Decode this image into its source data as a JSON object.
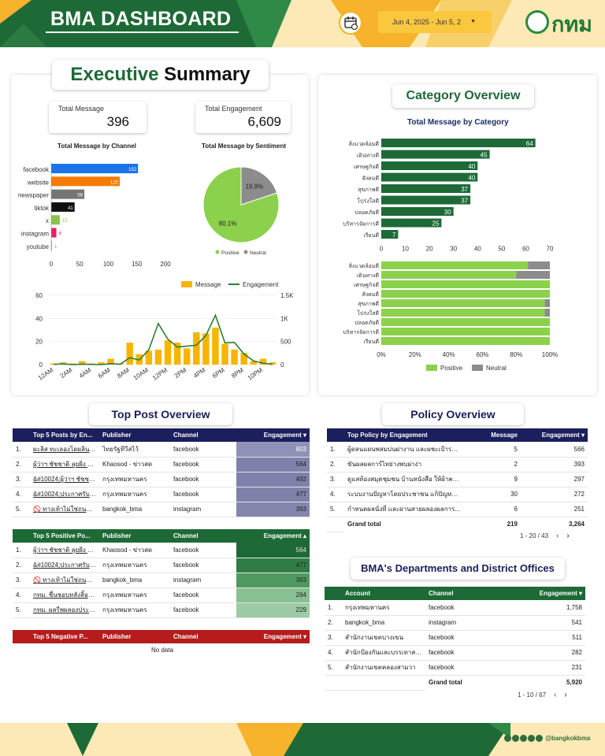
{
  "header": {
    "title": "BMA DASHBOARD",
    "date_range": "Jun 4, 2025 - Jun 5, 2",
    "logo_text": "กทม"
  },
  "colors": {
    "dark_green": "#1e6a37",
    "accent_green": "#7ec850",
    "yellow": "#f9c83f",
    "navy": "#1b1f5c",
    "red": "#b71c1c"
  },
  "exec": {
    "title_a": "Executive",
    "title_b": "Summary",
    "kpi1_label": "Total Message",
    "kpi1_value": "396",
    "kpi2_label": "Total Engagement",
    "kpi2_value": "6,609",
    "channel_title": "Total Message by Channel",
    "sentiment_title": "Total Message by Sentiment"
  },
  "category": {
    "title": "Category Overview",
    "chart_title": "Total Message by Category"
  },
  "chart_data": [
    {
      "type": "bar",
      "title": "Total Message by Channel",
      "categories": [
        "facebook",
        "website",
        "newspaper",
        "tiktok",
        "x",
        "instagram",
        "youtube"
      ],
      "values": [
        152,
        120,
        58,
        41,
        15,
        9,
        1
      ],
      "colors": [
        "#1a73e8",
        "#f57c00",
        "#757575",
        "#111111",
        "#8bc34a",
        "#e91e63",
        "#9e9e9e"
      ],
      "xlim": [
        0,
        200
      ],
      "xticks": [
        "0",
        "50",
        "100",
        "150",
        "200"
      ]
    },
    {
      "type": "pie",
      "title": "Total Message by Sentiment",
      "labels": [
        "Positive",
        "Neutral"
      ],
      "values": [
        80.1,
        19.9
      ],
      "label_text": [
        "80.1%",
        "19.9%"
      ],
      "colors": [
        "#8bd14b",
        "#8c8c8c"
      ]
    },
    {
      "type": "bar",
      "title": "Total Message by Category",
      "categories": [
        "สิ่งแวดล้อมดี",
        "เดินทางดี",
        "เศรษฐกิจดี",
        "สังคมดี",
        "สุขภาพดี",
        "โปร่งใสดี",
        "ปลอดภัยดี",
        "บริหารจัดการดี",
        "เรียนดี"
      ],
      "values": [
        64,
        45,
        40,
        40,
        37,
        37,
        30,
        25,
        7
      ],
      "xlim": [
        0,
        70
      ],
      "xticks": [
        "0",
        "10",
        "20",
        "30",
        "40",
        "50",
        "60",
        "70"
      ]
    },
    {
      "type": "bar",
      "title": "",
      "stacked": "100%",
      "categories": [
        "สิ่งแวดล้อมดี",
        "เดินทางดี",
        "เศรษฐกิจดี",
        "สังคมดี",
        "สุขภาพดี",
        "โปร่งใสดี",
        "ปลอดภัยดี",
        "บริหารจัดการดี",
        "เรียนดี"
      ],
      "series": [
        {
          "name": "Positive",
          "values": [
            87,
            80,
            100,
            100,
            97,
            97,
            100,
            100,
            100
          ]
        },
        {
          "name": "Neutral",
          "values": [
            13,
            20,
            0,
            0,
            3,
            3,
            0,
            0,
            0
          ]
        }
      ],
      "xticks": [
        "0%",
        "20%",
        "40%",
        "60%",
        "80%",
        "100%"
      ]
    },
    {
      "type": "bar",
      "title": "",
      "categories": [
        "12AM",
        "1AM",
        "2AM",
        "3AM",
        "4AM",
        "5AM",
        "6AM",
        "7AM",
        "8AM",
        "9AM",
        "10AM",
        "11AM",
        "12PM",
        "1PM",
        "2PM",
        "3PM",
        "4PM",
        "5PM",
        "6PM",
        "7PM",
        "8PM",
        "9PM",
        "10PM",
        "11PM"
      ],
      "xtick_labels": [
        "12AM",
        "2AM",
        "4AM",
        "6AM",
        "8AM",
        "10AM",
        "12PM",
        "2PM",
        "4PM",
        "6PM",
        "8PM",
        "10PM"
      ],
      "series": [
        {
          "name": "Message",
          "type": "bar",
          "axis": "left",
          "values": [
            1,
            2,
            1,
            3,
            1,
            2,
            5,
            1,
            19,
            9,
            12,
            13,
            21,
            19,
            14,
            28,
            27,
            32,
            18,
            13,
            10,
            3,
            5,
            2
          ]
        },
        {
          "name": "Engagement",
          "type": "line",
          "axis": "right",
          "values": [
            5,
            15,
            0,
            10,
            5,
            0,
            20,
            10,
            150,
            100,
            320,
            890,
            550,
            380,
            400,
            420,
            630,
            1070,
            470,
            480,
            230,
            80,
            30,
            5
          ]
        }
      ],
      "ylim_left": [
        0,
        60
      ],
      "ylim_right": [
        0,
        1500
      ],
      "yticks_left": [
        "0",
        "20",
        "40",
        "60"
      ],
      "yticks_right": [
        "0",
        "500",
        "1K",
        "1.5K"
      ]
    }
  ],
  "top_post": {
    "title": "Top Post Overview",
    "t1": {
      "headers": [
        "Top 5 Posts by En...",
        "Publisher",
        "Channel",
        "Engagement ▾"
      ],
      "rows": [
        {
          "n": "1.",
          "post": "ผะลิส ทะเลองโดผลินทะเลิก...",
          "pub": "ไทยรัฐทีวีสไว้",
          "ch": "facebook",
          "eng": "803"
        },
        {
          "n": "2.",
          "post": "ผู้ว่าฯ ชัชชาติ ลุยฝั่ง ผละ ผ...",
          "pub": "Khaosod - ข่าวสด",
          "ch": "facebook",
          "eng": "564"
        },
        {
          "n": "3.",
          "post": "&#10024;ผู้ว่าฯ ชัชชาติ...",
          "pub": "กรุงเทพมหานคร",
          "ch": "facebook",
          "eng": "492"
        },
        {
          "n": "4.",
          "post": "&#10024;ประกาศรับสมั...",
          "pub": "กรุงเทพมหานคร",
          "ch": "facebook",
          "eng": "477"
        },
        {
          "n": "5.",
          "post": "🚫 ทางเท้าไม่ใช่ถนนผลิต...",
          "pub": "bangkok_bma",
          "ch": "instagram",
          "eng": "393"
        }
      ]
    },
    "t2": {
      "headers": [
        "Top 5 Positive Po...",
        "Publisher",
        "Channel",
        "Engagement ▴"
      ],
      "rows": [
        {
          "n": "1.",
          "post": "ผู้ว่าฯ ชัชชาติ ลุยฝั่ง ผละ ผ...",
          "pub": "Khaosod - ข่าวสด",
          "ch": "facebook",
          "eng": "564"
        },
        {
          "n": "2.",
          "post": "&#10024;ประกาศรับสมั...",
          "pub": "กรุงเทพมหานคร",
          "ch": "facebook",
          "eng": "477"
        },
        {
          "n": "3.",
          "post": "🚫 ทางเท้าไม่ใช่ถนนผลิต...",
          "pub": "bangkok_bma",
          "ch": "instagram",
          "eng": "393"
        },
        {
          "n": "4.",
          "post": "กทม. ชื่นชอบหลังสิ้อยุคร...",
          "pub": "กรุงเทพมหานคร",
          "ch": "facebook",
          "eng": "264"
        },
        {
          "n": "5.",
          "post": "กทม. ผลรีพผลองประกาศ...",
          "pub": "กรุงเทพมหานคร",
          "ch": "facebook",
          "eng": "229"
        }
      ]
    },
    "t3": {
      "headers": [
        "Top 5 Negative P...",
        "Publisher",
        "Channel",
        "Engagement ▾"
      ],
      "no_data": "No data"
    }
  },
  "policy": {
    "title": "Policy Overview",
    "headers": [
      "Top Policy by Engagement",
      "Message",
      "Engagement ▾"
    ],
    "rows": [
      {
        "n": "1.",
        "name": "ผู้ดลนแผนพสมบ่นผ่างาน และผชะเป้ารากอดบ...",
        "msg": "5",
        "eng": "566"
      },
      {
        "n": "2.",
        "name": "ขันผลผลการ์ไทย่างพบผ่าง่า",
        "msg": "2",
        "eng": "393"
      },
      {
        "n": "3.",
        "name": "ดูแลท้องสมุดชุมชน บ้านหนังสือ ให้ผ้าคา...",
        "msg": "9",
        "eng": "297"
      },
      {
        "n": "4.",
        "name": "ระบบงานปัญหาโดยประชาชน แก้ปัญหาโค...",
        "msg": "30",
        "eng": "272"
      },
      {
        "n": "5.",
        "name": "กำหนดผลนั่งที่ และผ่านสายผลองผลการ...",
        "msg": "6",
        "eng": "251"
      }
    ],
    "grand_label": "Grand total",
    "grand_msg": "219",
    "grand_eng": "3,264",
    "pager": "1 - 20 / 43",
    "prev": "‹",
    "next": "›"
  },
  "depts": {
    "title": "BMA's Departments and District Offices",
    "headers": [
      "Account",
      "Channel",
      "Engagement ▾"
    ],
    "rows": [
      {
        "n": "1.",
        "acc": "กรุงเทพมหานคร",
        "ch": "facebook",
        "eng": "1,758"
      },
      {
        "n": "2.",
        "acc": "bangkok_bma",
        "ch": "instagram",
        "eng": "541"
      },
      {
        "n": "3.",
        "acc": "สำนักงานเขตบางเขน",
        "ch": "facebook",
        "eng": "511"
      },
      {
        "n": "4.",
        "acc": "สำนักป้องกันและบรรเทาสาธาร...",
        "ch": "facebook",
        "eng": "282"
      },
      {
        "n": "5.",
        "acc": "สำนักงานเขตคลองสามวา",
        "ch": "facebook",
        "eng": "231"
      }
    ],
    "grand_label": "Grand total",
    "grand_eng": "5,920",
    "pager": "1 - 10 / 67",
    "prev": "‹",
    "next": "›"
  },
  "footer": {
    "handle": "@bangkokbma"
  }
}
